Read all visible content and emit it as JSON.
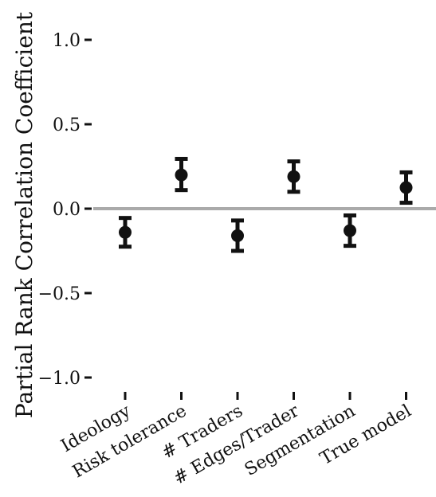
{
  "chart_data": {
    "type": "scatter",
    "subtype": "point-with-error-bars",
    "title": "",
    "xlabel": "",
    "ylabel": "Partial Rank Correlation Coefficient",
    "categories": [
      "Ideology",
      "Risk tolerance",
      "# Traders",
      "# Edges/Trader",
      "Segmentation",
      "True model"
    ],
    "values": [
      -0.14,
      0.2,
      -0.16,
      0.19,
      -0.13,
      0.125
    ],
    "lower": [
      -0.225,
      0.11,
      -0.25,
      0.1,
      -0.22,
      0.035
    ],
    "upper": [
      -0.055,
      0.295,
      -0.07,
      0.28,
      -0.04,
      0.215
    ],
    "yticks": [
      1.0,
      0.5,
      0.0,
      -0.5,
      -1.0
    ],
    "ytick_labels": [
      "1.0",
      "0.5",
      "0.0",
      "−0.5",
      "−1.0"
    ],
    "ylim": [
      -1.1,
      1.15
    ],
    "reference_line": 0.0,
    "grid": false,
    "legend": "none",
    "colors": {
      "points": "#111111",
      "reference_line": "#aaaaaa",
      "axis_text": "#111111"
    }
  }
}
